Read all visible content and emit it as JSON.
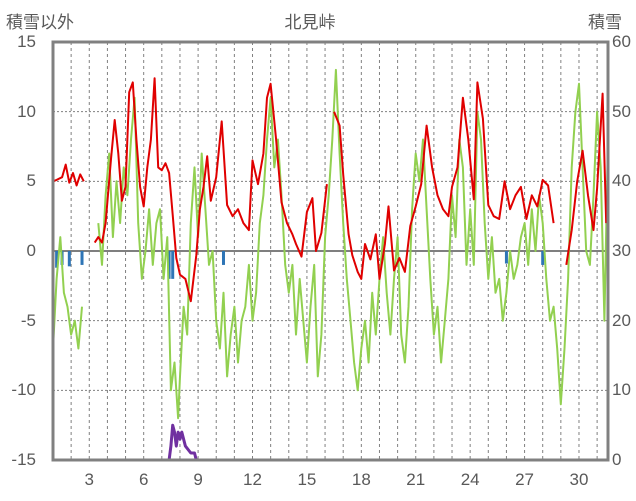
{
  "chart_data": {
    "type": "line",
    "title": "北見峠",
    "left_axis_label": "積雪以外",
    "right_axis_label": "積雪",
    "left_ylim": [
      -15,
      15
    ],
    "right_ylim": [
      0,
      60
    ],
    "left_ticks": [
      "15",
      "10",
      "5",
      "0",
      "-5",
      "-10",
      "-15"
    ],
    "right_ticks": [
      "60",
      "50",
      "40",
      "30",
      "20",
      "10",
      "0"
    ],
    "xlim": [
      1,
      31.6
    ],
    "x_ticks": [
      "3",
      "6",
      "9",
      "12",
      "15",
      "18",
      "21",
      "24",
      "27",
      "30"
    ],
    "grid": true,
    "colors": {
      "frame": "#808080",
      "grid": "#808080",
      "zero_line": "#7f7f7f",
      "temperature": "#e00000",
      "wind": "#92d050",
      "precip": "#2e75b6",
      "snow": "#7030a0"
    },
    "series": [
      {
        "key": "temperature",
        "axis": "left",
        "points": [
          [
            1.0,
            5.0
          ],
          [
            1.2,
            5.1
          ],
          [
            1.5,
            5.3
          ],
          [
            1.7,
            6.2
          ],
          [
            1.9,
            4.9
          ],
          [
            2.1,
            5.6
          ],
          [
            2.3,
            4.7
          ],
          [
            2.5,
            5.5
          ],
          [
            2.7,
            5.0
          ],
          [
            2.8,
            null
          ],
          [
            3.3,
            0.6
          ],
          [
            3.5,
            1.0
          ],
          [
            3.7,
            0.6
          ],
          [
            3.9,
            2.0
          ],
          [
            4.2,
            6.6
          ],
          [
            4.4,
            9.4
          ],
          [
            4.6,
            7.0
          ],
          [
            4.8,
            3.6
          ],
          [
            5.0,
            4.6
          ],
          [
            5.2,
            11.4
          ],
          [
            5.4,
            12.1
          ],
          [
            5.6,
            8.0
          ],
          [
            5.8,
            4.6
          ],
          [
            6.0,
            3.2
          ],
          [
            6.2,
            6.0
          ],
          [
            6.4,
            8.0
          ],
          [
            6.6,
            12.4
          ],
          [
            6.8,
            6.0
          ],
          [
            7.0,
            5.8
          ],
          [
            7.2,
            6.3
          ],
          [
            7.4,
            5.6
          ],
          [
            7.6,
            2.6
          ],
          [
            7.8,
            -0.5
          ],
          [
            8.0,
            -1.7
          ],
          [
            8.3,
            -2.0
          ],
          [
            8.6,
            -3.6
          ],
          [
            8.9,
            -0.3
          ],
          [
            9.1,
            3.0
          ],
          [
            9.3,
            4.6
          ],
          [
            9.5,
            6.8
          ],
          [
            9.7,
            3.6
          ],
          [
            10.0,
            5.3
          ],
          [
            10.3,
            9.3
          ],
          [
            10.6,
            3.3
          ],
          [
            10.9,
            2.5
          ],
          [
            11.2,
            3.0
          ],
          [
            11.5,
            2.0
          ],
          [
            11.8,
            1.5
          ],
          [
            12.0,
            6.5
          ],
          [
            12.3,
            4.8
          ],
          [
            12.6,
            7.0
          ],
          [
            12.8,
            11.0
          ],
          [
            13.0,
            12.0
          ],
          [
            13.3,
            8.0
          ],
          [
            13.6,
            3.5
          ],
          [
            13.9,
            2.0
          ],
          [
            14.2,
            1.2
          ],
          [
            14.4,
            0.5
          ],
          [
            14.7,
            -0.4
          ],
          [
            15.0,
            2.8
          ],
          [
            15.3,
            3.8
          ],
          [
            15.5,
            0.0
          ],
          [
            15.8,
            1.3
          ],
          [
            16.1,
            4.8
          ],
          [
            16.3,
            null
          ],
          [
            16.5,
            10.0
          ],
          [
            16.8,
            9.0
          ],
          [
            17.0,
            5.5
          ],
          [
            17.3,
            1.2
          ],
          [
            17.5,
            -0.3
          ],
          [
            17.8,
            -1.5
          ],
          [
            18.0,
            -2.0
          ],
          [
            18.2,
            0.5
          ],
          [
            18.5,
            -0.6
          ],
          [
            18.8,
            1.2
          ],
          [
            19.0,
            -2.0
          ],
          [
            19.3,
            0.5
          ],
          [
            19.5,
            3.2
          ],
          [
            19.8,
            -1.4
          ],
          [
            20.1,
            -0.5
          ],
          [
            20.4,
            -1.5
          ],
          [
            20.7,
            1.8
          ],
          [
            21.0,
            3.2
          ],
          [
            21.3,
            4.8
          ],
          [
            21.6,
            9.0
          ],
          [
            21.9,
            6.0
          ],
          [
            22.2,
            4.0
          ],
          [
            22.5,
            3.0
          ],
          [
            22.8,
            2.5
          ],
          [
            23.0,
            4.6
          ],
          [
            23.3,
            6.0
          ],
          [
            23.6,
            11.0
          ],
          [
            23.9,
            8.0
          ],
          [
            24.2,
            3.7
          ],
          [
            24.4,
            12.1
          ],
          [
            24.7,
            9.5
          ],
          [
            25.0,
            3.3
          ],
          [
            25.3,
            2.5
          ],
          [
            25.6,
            2.3
          ],
          [
            25.9,
            5.0
          ],
          [
            26.2,
            3.0
          ],
          [
            26.5,
            4.0
          ],
          [
            26.8,
            4.6
          ],
          [
            27.1,
            2.3
          ],
          [
            27.4,
            4.0
          ],
          [
            27.7,
            3.2
          ],
          [
            28.0,
            5.1
          ],
          [
            28.3,
            4.7
          ],
          [
            28.6,
            2.0
          ],
          [
            28.8,
            null
          ],
          [
            29.3,
            -1.0
          ],
          [
            29.6,
            1.5
          ],
          [
            29.9,
            5.0
          ],
          [
            30.2,
            7.2
          ],
          [
            30.5,
            4.0
          ],
          [
            30.8,
            1.5
          ],
          [
            31.0,
            4.5
          ],
          [
            31.3,
            11.3
          ],
          [
            31.5,
            2.0
          ]
        ]
      },
      {
        "key": "wind",
        "axis": "left",
        "points": [
          [
            1.0,
            -7.0
          ],
          [
            1.2,
            -2.0
          ],
          [
            1.4,
            1.0
          ],
          [
            1.6,
            -3.0
          ],
          [
            1.8,
            -4.0
          ],
          [
            2.0,
            -6.0
          ],
          [
            2.2,
            -5.0
          ],
          [
            2.4,
            -7.0
          ],
          [
            2.6,
            -4.0
          ],
          [
            2.8,
            null
          ],
          [
            3.5,
            2.0
          ],
          [
            3.7,
            -1.0
          ],
          [
            3.9,
            4.0
          ],
          [
            4.1,
            7.0
          ],
          [
            4.3,
            1.0
          ],
          [
            4.5,
            5.0
          ],
          [
            4.7,
            2.0
          ],
          [
            4.9,
            6.0
          ],
          [
            5.1,
            4.0
          ],
          [
            5.3,
            8.0
          ],
          [
            5.5,
            11.0
          ],
          [
            5.7,
            2.0
          ],
          [
            5.9,
            -2.0
          ],
          [
            6.1,
            0.0
          ],
          [
            6.3,
            3.0
          ],
          [
            6.5,
            -1.0
          ],
          [
            6.7,
            2.0
          ],
          [
            6.9,
            3.0
          ],
          [
            7.1,
            -2.0
          ],
          [
            7.3,
            1.0
          ],
          [
            7.5,
            -10.0
          ],
          [
            7.7,
            -8.0
          ],
          [
            7.9,
            -12.0
          ],
          [
            8.0,
            -9.0
          ],
          [
            8.2,
            -4.0
          ],
          [
            8.4,
            -6.0
          ],
          [
            8.6,
            2.0
          ],
          [
            8.8,
            6.0
          ],
          [
            9.0,
            1.0
          ],
          [
            9.2,
            7.0
          ],
          [
            9.4,
            3.0
          ],
          [
            9.6,
            -1.0
          ],
          [
            9.8,
            0.0
          ],
          [
            10.0,
            -5.0
          ],
          [
            10.2,
            -7.0
          ],
          [
            10.4,
            -3.0
          ],
          [
            10.6,
            -9.0
          ],
          [
            10.8,
            -6.0
          ],
          [
            11.0,
            -4.0
          ],
          [
            11.2,
            -8.0
          ],
          [
            11.4,
            -5.0
          ],
          [
            11.6,
            -4.0
          ],
          [
            11.8,
            -1.0
          ],
          [
            12.0,
            -5.0
          ],
          [
            12.2,
            -3.0
          ],
          [
            12.4,
            2.0
          ],
          [
            12.6,
            4.0
          ],
          [
            12.8,
            8.0
          ],
          [
            13.0,
            11.0
          ],
          [
            13.2,
            6.0
          ],
          [
            13.4,
            8.0
          ],
          [
            13.6,
            4.0
          ],
          [
            13.8,
            -1.0
          ],
          [
            14.0,
            -3.0
          ],
          [
            14.2,
            -1.0
          ],
          [
            14.4,
            -6.0
          ],
          [
            14.6,
            -2.0
          ],
          [
            14.8,
            -5.0
          ],
          [
            15.0,
            -8.0
          ],
          [
            15.2,
            -4.0
          ],
          [
            15.4,
            -1.0
          ],
          [
            15.6,
            -9.0
          ],
          [
            15.8,
            -6.0
          ],
          [
            16.0,
            1.0
          ],
          [
            16.2,
            4.0
          ],
          [
            16.4,
            8.0
          ],
          [
            16.6,
            13.0
          ],
          [
            16.8,
            7.0
          ],
          [
            17.0,
            2.0
          ],
          [
            17.2,
            -2.0
          ],
          [
            17.4,
            -5.0
          ],
          [
            17.6,
            -8.0
          ],
          [
            17.8,
            -10.0
          ],
          [
            18.0,
            -7.0
          ],
          [
            18.2,
            -5.0
          ],
          [
            18.4,
            -8.0
          ],
          [
            18.6,
            -3.0
          ],
          [
            18.8,
            -6.0
          ],
          [
            19.0,
            -2.0
          ],
          [
            19.2,
            1.0
          ],
          [
            19.4,
            -3.0
          ],
          [
            19.6,
            -6.0
          ],
          [
            19.8,
            -2.0
          ],
          [
            20.0,
            1.0
          ],
          [
            20.2,
            -6.0
          ],
          [
            20.4,
            -8.0
          ],
          [
            20.6,
            -4.0
          ],
          [
            20.8,
            3.0
          ],
          [
            21.0,
            7.0
          ],
          [
            21.2,
            5.0
          ],
          [
            21.4,
            8.0
          ],
          [
            21.6,
            3.0
          ],
          [
            21.8,
            -2.0
          ],
          [
            22.0,
            -6.0
          ],
          [
            22.2,
            -4.0
          ],
          [
            22.4,
            -8.0
          ],
          [
            22.6,
            -5.0
          ],
          [
            22.8,
            -2.0
          ],
          [
            23.0,
            4.0
          ],
          [
            23.2,
            1.0
          ],
          [
            23.4,
            8.0
          ],
          [
            23.6,
            6.0
          ],
          [
            23.8,
            -1.0
          ],
          [
            24.0,
            3.0
          ],
          [
            24.2,
            -1.0
          ],
          [
            24.4,
            10.0
          ],
          [
            24.6,
            8.0
          ],
          [
            24.8,
            2.0
          ],
          [
            25.0,
            -2.0
          ],
          [
            25.2,
            1.0
          ],
          [
            25.4,
            -3.0
          ],
          [
            25.6,
            -2.0
          ],
          [
            25.8,
            -5.0
          ],
          [
            26.0,
            -3.0
          ],
          [
            26.2,
            0.0
          ],
          [
            26.4,
            -2.0
          ],
          [
            26.6,
            -1.0
          ],
          [
            26.8,
            1.0
          ],
          [
            27.0,
            2.0
          ],
          [
            27.2,
            -1.0
          ],
          [
            27.4,
            3.0
          ],
          [
            27.6,
            0.0
          ],
          [
            27.8,
            4.0
          ],
          [
            28.0,
            2.0
          ],
          [
            28.2,
            -2.0
          ],
          [
            28.4,
            -5.0
          ],
          [
            28.6,
            -4.0
          ],
          [
            28.8,
            -7.0
          ],
          [
            29.0,
            -11.0
          ],
          [
            29.2,
            -7.0
          ],
          [
            29.4,
            -2.0
          ],
          [
            29.6,
            6.0
          ],
          [
            29.8,
            10.0
          ],
          [
            30.0,
            12.0
          ],
          [
            30.2,
            6.0
          ],
          [
            30.4,
            0.0
          ],
          [
            30.6,
            -1.0
          ],
          [
            30.8,
            4.0
          ],
          [
            31.0,
            10.0
          ],
          [
            31.2,
            6.0
          ],
          [
            31.4,
            -5.0
          ],
          [
            31.6,
            8.0
          ]
        ]
      },
      {
        "key": "precip",
        "axis": "left",
        "bars": [
          [
            1.2,
            -1.2
          ],
          [
            1.5,
            -1.0
          ],
          [
            1.9,
            -1.1
          ],
          [
            2.6,
            -1.0
          ],
          [
            7.4,
            -2.0
          ],
          [
            7.6,
            -2.0
          ],
          [
            10.4,
            -1.0
          ],
          [
            26.0,
            -0.9
          ],
          [
            28.0,
            -1.0
          ]
        ]
      },
      {
        "key": "snow",
        "axis": "right",
        "points": [
          [
            1.0,
            0
          ],
          [
            7.4,
            0
          ],
          [
            7.5,
            2
          ],
          [
            7.6,
            5
          ],
          [
            7.7,
            4
          ],
          [
            7.8,
            2
          ],
          [
            7.9,
            4
          ],
          [
            8.0,
            3
          ],
          [
            8.1,
            4
          ],
          [
            8.3,
            2
          ],
          [
            8.6,
            1
          ],
          [
            8.8,
            1
          ],
          [
            8.9,
            0
          ],
          [
            31.6,
            0
          ]
        ]
      }
    ]
  }
}
